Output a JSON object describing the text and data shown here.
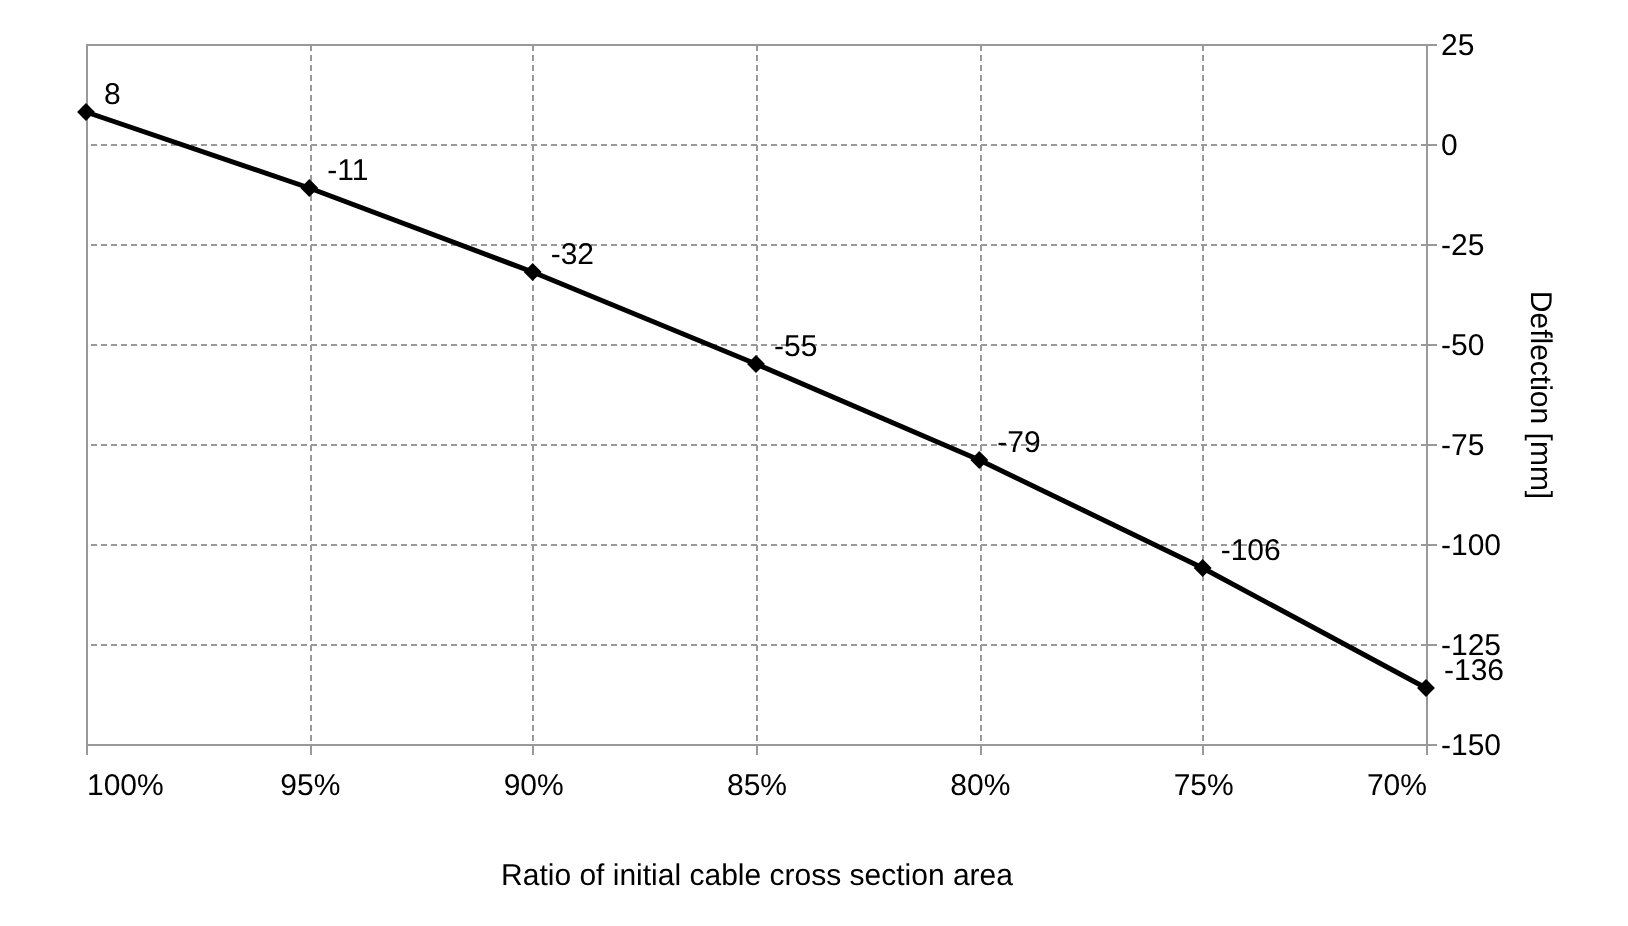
{
  "chart_data": {
    "type": "line",
    "categories": [
      "100%",
      "95%",
      "90%",
      "85%",
      "80%",
      "75%",
      "70%"
    ],
    "series": [
      {
        "color": "#000000",
        "values": [
          8,
          -11,
          -32,
          -55,
          -79,
          -106,
          -136
        ]
      }
    ],
    "xlabel": "Ratio of initial cable cross section area",
    "ylabel": "Deflection [mm]",
    "ylim": [
      -150,
      25
    ],
    "yticks": [
      -150,
      -125,
      -100,
      -75,
      -50,
      -25,
      0,
      25
    ],
    "grid": true,
    "marker": "diamond",
    "line_style": "solid",
    "data_labels": true
  }
}
